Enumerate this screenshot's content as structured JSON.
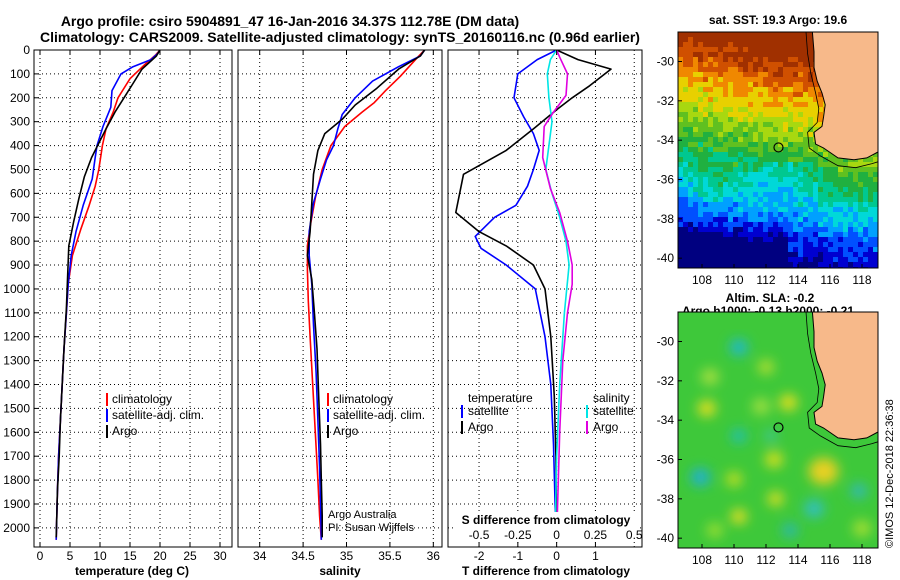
{
  "page": {
    "title_line1": "Argo profile: csiro 5904891_47 16-Jan-2016 34.37S 112.78E (DM data)",
    "title_line2": "Climatology: CARS2009. Satellite-adjusted climatology: synTS_20160116.nc (0.96d earlier)",
    "credit_line1": "Argo Australia",
    "credit_line2": "PI: Susan Wijffels",
    "imos_stamp": "©IMOS 12-Dec-2018 22:36:38"
  },
  "colors": {
    "climatology": "#ff0000",
    "satellite": "#0000ff",
    "argo": "#000000",
    "sal_satellite": "#00e6e6",
    "sal_argo": "#e000e0",
    "land": "#f7b98a",
    "coast": "#000000"
  },
  "chart_data": [
    {
      "id": "temperature",
      "type": "line",
      "xlabel": "temperature (deg C)",
      "ylabel": "",
      "xlim": [
        -1,
        32
      ],
      "ylim": [
        2080,
        0
      ],
      "xticks": [
        0,
        5,
        10,
        15,
        20,
        25,
        30
      ],
      "xtick_labels": [
        "0",
        "5",
        "10",
        "15",
        "20",
        "25",
        "30"
      ],
      "yticks": [
        0,
        100,
        200,
        300,
        400,
        500,
        600,
        700,
        800,
        900,
        1000,
        1100,
        1200,
        1300,
        1400,
        1500,
        1600,
        1700,
        1800,
        1900,
        2000
      ],
      "ytick_labels": [
        "0",
        "100",
        "200",
        "300",
        "400",
        "500",
        "600",
        "700",
        "800",
        "900",
        "1000",
        "1100",
        "1200",
        "1300",
        "1400",
        "1500",
        "1600",
        "1700",
        "1800",
        "1900",
        "2000"
      ],
      "legend": [
        "climatology",
        "satellite-adj. clim.",
        "Argo"
      ],
      "series": [
        {
          "name": "climatology",
          "color_key": "climatology",
          "x": [
            20,
            19.3,
            17.5,
            15,
            13,
            12.2,
            11,
            10.4,
            9.8,
            9.2,
            8.2,
            6.8,
            5.4,
            4.7,
            4.4,
            4.0,
            3.7,
            3.4,
            3.1,
            2.9,
            2.8,
            2.7
          ],
          "y": [
            0,
            20,
            60,
            120,
            200,
            260,
            330,
            400,
            500,
            570,
            650,
            750,
            860,
            980,
            1100,
            1250,
            1400,
            1550,
            1700,
            1850,
            1950,
            2050
          ]
        },
        {
          "name": "satellite-adj. clim.",
          "color_key": "satellite",
          "x": [
            20,
            19.6,
            18.5,
            15.5,
            13.5,
            12,
            11.8,
            10.5,
            9.5,
            9.2,
            8.7,
            7.2,
            6.0,
            5.2,
            4.7,
            4.4,
            4.0,
            3.7,
            3.4,
            3.1,
            2.9,
            2.8,
            2.7
          ],
          "y": [
            0,
            15,
            40,
            70,
            100,
            170,
            240,
            320,
            400,
            450,
            540,
            650,
            760,
            860,
            980,
            1100,
            1250,
            1400,
            1550,
            1700,
            1850,
            1950,
            2050
          ]
        },
        {
          "name": "Argo",
          "color_key": "argo",
          "x": [
            20,
            19.4,
            17,
            15.5,
            14,
            12.5,
            11,
            10,
            8.6,
            7.4,
            6.5,
            5.6,
            4.8,
            4.6,
            4.4,
            4.0,
            3.7,
            3.4,
            3.2,
            2.9,
            2.8,
            2.7
          ],
          "y": [
            0,
            25,
            80,
            140,
            200,
            260,
            330,
            380,
            450,
            530,
            620,
            720,
            820,
            950,
            1080,
            1250,
            1400,
            1550,
            1700,
            1850,
            1950,
            2040
          ]
        }
      ]
    },
    {
      "id": "salinity",
      "type": "line",
      "xlabel": "salinity",
      "xlim": [
        33.75,
        36.1
      ],
      "ylim": [
        2080,
        0
      ],
      "xticks": [
        34,
        34.5,
        35,
        35.5,
        36
      ],
      "xtick_labels": [
        "34",
        "34.5",
        "35",
        "35.5",
        "36"
      ],
      "legend": [
        "climatology",
        "satellite-adj. clim.",
        "Argo"
      ],
      "series": [
        {
          "name": "climatology",
          "color_key": "climatology",
          "x": [
            35.9,
            35.82,
            35.62,
            35.45,
            35.32,
            35.18,
            34.98,
            34.82,
            34.72,
            34.64,
            34.58,
            34.55,
            34.55,
            34.56,
            34.58,
            34.61,
            34.64,
            34.67,
            34.69,
            34.71
          ],
          "y": [
            0,
            30,
            110,
            170,
            220,
            260,
            320,
            400,
            500,
            620,
            740,
            820,
            920,
            1050,
            1200,
            1400,
            1600,
            1800,
            1950,
            2050
          ]
        },
        {
          "name": "satellite-adj. clim.",
          "color_key": "satellite",
          "x": [
            35.9,
            35.85,
            35.6,
            35.3,
            35.1,
            34.95,
            34.9,
            34.85,
            34.77,
            34.7,
            34.62,
            34.57,
            34.57,
            34.6,
            34.62,
            34.65,
            34.67,
            34.69,
            34.7,
            34.71
          ],
          "y": [
            0,
            25,
            70,
            130,
            200,
            270,
            330,
            400,
            460,
            540,
            640,
            760,
            860,
            980,
            1150,
            1350,
            1550,
            1750,
            1900,
            2050
          ]
        },
        {
          "name": "Argo",
          "color_key": "argo",
          "x": [
            35.9,
            35.85,
            35.6,
            35.35,
            35.1,
            34.95,
            34.75,
            34.67,
            34.62,
            34.6,
            34.58,
            34.55,
            34.6,
            34.63,
            34.66,
            34.68,
            34.7,
            34.71,
            34.72,
            34.72
          ],
          "y": [
            0,
            25,
            80,
            160,
            230,
            290,
            350,
            420,
            520,
            640,
            760,
            860,
            960,
            1100,
            1250,
            1450,
            1650,
            1800,
            1950,
            2040
          ]
        }
      ]
    },
    {
      "id": "difference",
      "type": "line",
      "xlabel": "T difference from climatology",
      "xlim": [
        -2.8,
        2.2
      ],
      "ylim": [
        2080,
        0
      ],
      "xticks": [
        -2,
        -1,
        0,
        1
      ],
      "xtick_labels": [
        "-2",
        "-1",
        "0",
        "1"
      ],
      "s_axis_label": "S difference from climatology",
      "s_ticks": [
        -0.5,
        -0.25,
        0,
        0.25,
        0.5
      ],
      "s_tick_labels": [
        "-0.5",
        "-0.25",
        "0",
        "0.25",
        "0.5"
      ],
      "s_per_t": 0.25,
      "legend_temperature_title": "temperature",
      "legend_salinity_title": "salinity",
      "legend": [
        "satellite",
        "Argo",
        "satellite",
        "Argo"
      ],
      "series": [
        {
          "name": "T satellite",
          "color_key": "satellite",
          "x": [
            0,
            -0.5,
            -1.0,
            -1.1,
            -0.85,
            -0.6,
            -0.45,
            -0.6,
            -0.75,
            -1.05,
            -1.6,
            -2.1,
            -1.95,
            -1.3,
            -0.55,
            -0.3,
            -0.15,
            -0.08,
            -0.04,
            0
          ],
          "y": [
            0,
            40,
            100,
            200,
            280,
            350,
            420,
            500,
            570,
            650,
            700,
            780,
            830,
            900,
            1000,
            1200,
            1400,
            1650,
            1900,
            2050
          ]
        },
        {
          "name": "T Argo",
          "color_key": "argo",
          "x": [
            0,
            0.55,
            1.4,
            0.85,
            0.4,
            0.0,
            -0.6,
            -1.3,
            -2.4,
            -2.6,
            -2.0,
            -1.3,
            -0.6,
            -0.3,
            -0.15,
            -0.06,
            -0.02,
            0
          ],
          "y": [
            0,
            40,
            80,
            150,
            200,
            250,
            330,
            420,
            520,
            680,
            760,
            820,
            900,
            1000,
            1200,
            1450,
            1700,
            2050
          ]
        },
        {
          "name": "S satellite",
          "color_key": "sal_satellite",
          "x": [
            0,
            -0.04,
            -0.06,
            -0.05,
            -0.03,
            -0.05,
            -0.07,
            -0.03,
            0.02,
            0.06,
            0.08,
            0.05,
            0.02,
            0.0,
            -0.01
          ],
          "y": [
            0,
            40,
            100,
            200,
            300,
            400,
            500,
            600,
            700,
            800,
            900,
            1100,
            1400,
            1700,
            2050
          ]
        },
        {
          "name": "S Argo",
          "color_key": "sal_argo",
          "x": [
            0,
            0.02,
            0.07,
            0.06,
            -0.02,
            -0.08,
            -0.09,
            -0.04,
            0.02,
            0.07,
            0.1,
            0.1,
            0.07,
            0.04,
            0.02,
            0.0
          ],
          "y": [
            0,
            30,
            100,
            190,
            260,
            320,
            450,
            580,
            680,
            800,
            900,
            980,
            1100,
            1300,
            1600,
            2050
          ]
        }
      ]
    },
    {
      "id": "sst-map",
      "type": "heatmap",
      "title": "sat. SST: 19.3 Argo: 19.6",
      "xlim": [
        106.5,
        119
      ],
      "ylim": [
        -40.5,
        -28.5
      ],
      "xticks": [
        108,
        110,
        112,
        114,
        116,
        118
      ],
      "xtick_labels": [
        "108",
        "110",
        "112",
        "114",
        "116",
        "118"
      ],
      "yticks": [
        -30,
        -32,
        -34,
        -36,
        -38,
        -40
      ],
      "ytick_labels": [
        "-30",
        "-32",
        "-34",
        "-36",
        "-38",
        "-40"
      ],
      "profile_location": [
        112.78,
        -34.37
      ],
      "palette": [
        "#000080",
        "#0000d0",
        "#0050ff",
        "#00a0ff",
        "#00d8d8",
        "#00c890",
        "#20b040",
        "#60c020",
        "#a8d810",
        "#e8d000",
        "#f08800",
        "#d05000",
        "#a03000"
      ]
    },
    {
      "id": "sla-map",
      "type": "heatmap",
      "title_line1": "Altim. SLA: -0.2",
      "title_line2": "Argo h1000: -0.13 h2000: -0.21",
      "xlim": [
        106.5,
        119
      ],
      "ylim": [
        -40.5,
        -28.5
      ],
      "xticks": [
        108,
        110,
        112,
        114,
        116,
        118
      ],
      "xtick_labels": [
        "108",
        "110",
        "112",
        "114",
        "116",
        "118"
      ],
      "yticks": [
        -30,
        -32,
        -34,
        -36,
        -38,
        -40
      ],
      "ytick_labels": [
        "-30",
        "-32",
        "-34",
        "-36",
        "-38",
        "-40"
      ],
      "profile_location": [
        112.78,
        -34.37
      ]
    }
  ]
}
